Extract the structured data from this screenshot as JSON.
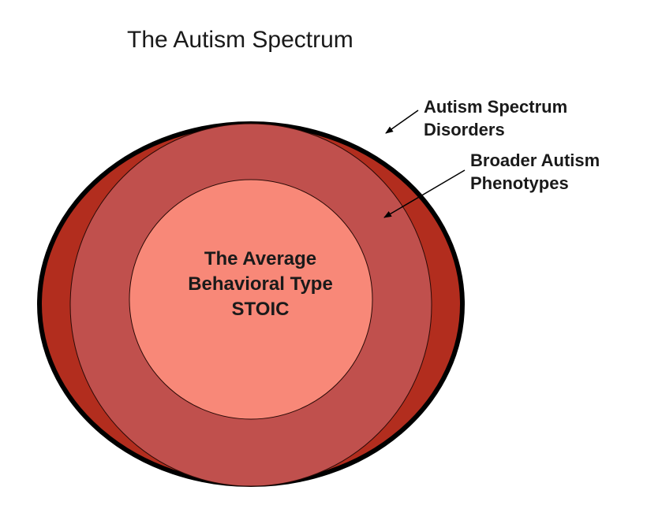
{
  "title": "The Autism Spectrum",
  "layers": {
    "outer": {
      "label_lines": [
        "Autism Spectrum",
        "Disorders"
      ],
      "fill": "#b22d1e",
      "stroke": "#000000"
    },
    "middle": {
      "label_lines": [
        "Broader Autism",
        "Phenotypes"
      ],
      "fill": "#c0504d"
    },
    "inner": {
      "label_lines": [
        "The Average",
        "Behavioral Type",
        "STOIC"
      ],
      "fill": "#f88878"
    }
  }
}
